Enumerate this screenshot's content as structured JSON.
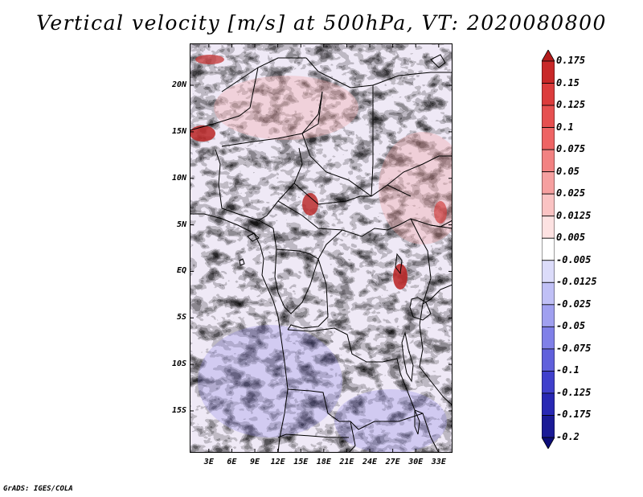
{
  "title": "Vertical velocity [m/s] at 500hPa, VT: 2020080800",
  "credit": "GrADS: IGES/COLA",
  "map": {
    "lat_labels": [
      "20N",
      "15N",
      "10N",
      "5N",
      "EQ",
      "5S",
      "10S",
      "15S"
    ],
    "lat_values": [
      20,
      15,
      10,
      5,
      0,
      -5,
      -10,
      -15
    ],
    "lon_labels": [
      "3E",
      "6E",
      "9E",
      "12E",
      "15E",
      "18E",
      "21E",
      "24E",
      "27E",
      "30E",
      "33E"
    ],
    "lon_values": [
      3,
      6,
      9,
      12,
      15,
      18,
      21,
      24,
      27,
      30,
      33
    ],
    "lon_range": [
      0.5,
      34.8
    ],
    "lat_range": [
      -19.5,
      24.5
    ],
    "field": "vertical-velocity",
    "unit": "m/s",
    "level": "500hPa",
    "valid_time": "2020080800"
  },
  "colorbar": {
    "levels": [
      "0.175",
      "0.15",
      "0.125",
      "0.1",
      "0.075",
      "0.05",
      "0.025",
      "0.0125",
      "0.005",
      "-0.005",
      "-0.0125",
      "-0.025",
      "-0.05",
      "-0.075",
      "-0.1",
      "-0.125",
      "-0.175",
      "-0.2"
    ],
    "colors": [
      "#b41c1c",
      "#c82828",
      "#dc3c3c",
      "#e65050",
      "#ee6464",
      "#f28282",
      "#f6a0a0",
      "#fac3c3",
      "#fde2e2",
      "#ffffff",
      "#dcdcfa",
      "#c0c0f6",
      "#a0a0f0",
      "#8080e8",
      "#6060dc",
      "#4040cc",
      "#2828b4",
      "#1a1a96",
      "#0d0d78"
    ]
  }
}
